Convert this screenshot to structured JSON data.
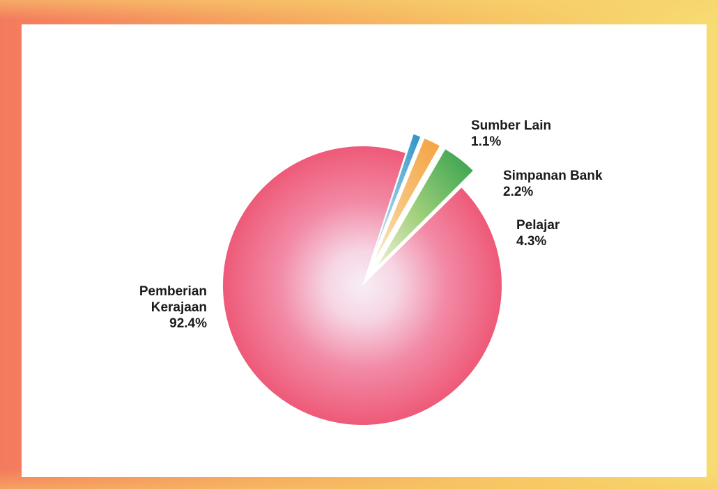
{
  "chart_data": {
    "type": "pie",
    "title": "",
    "slices": [
      {
        "label_lines": [
          "Pemberian",
          "Kerajaan"
        ],
        "value_label": "92.4%",
        "value": 92.4,
        "color": "#ee5a78"
      },
      {
        "label_lines": [
          "Pelajar"
        ],
        "value_label": "4.3%",
        "value": 4.3,
        "color": "#2e9e4a"
      },
      {
        "label_lines": [
          "Simpanan Bank"
        ],
        "value_label": "2.2%",
        "value": 2.2,
        "color": "#f3a13f"
      },
      {
        "label_lines": [
          "Sumber Lain"
        ],
        "value_label": "1.1%",
        "value": 1.1,
        "color": "#2a91c8"
      }
    ],
    "exploded": [
      "Pelajar",
      "Simpanan Bank",
      "Sumber Lain"
    ],
    "legend": "none"
  },
  "colors": {
    "frame_left": "#f47a5e",
    "frame_right": "#f7dc72",
    "panel": "#ffffff",
    "pie_center": "#f6eaf2"
  }
}
